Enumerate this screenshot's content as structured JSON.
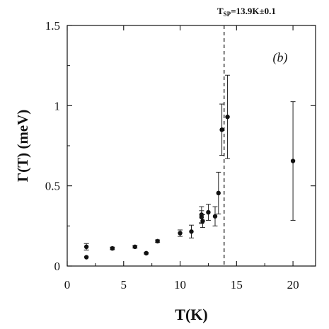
{
  "chart_data": {
    "type": "scatter",
    "title": "",
    "xlabel": "T(K)",
    "ylabel": "Γ(T)  (meV)",
    "panel_label": "(b)",
    "xlim": [
      0,
      22
    ],
    "ylim": [
      0,
      1.5
    ],
    "x_ticks": [
      "0",
      "5",
      "10",
      "15",
      "20"
    ],
    "y_ticks": [
      "0",
      "0.5",
      "1",
      "1.5"
    ],
    "x_tick_values": [
      0,
      5,
      10,
      15,
      20
    ],
    "y_tick_values": [
      0,
      0.5,
      1,
      1.5
    ],
    "grid": false,
    "transition": {
      "x": 13.9,
      "label_main": "T",
      "label_sub": "SP",
      "label_rest": "=13.9K±0.1"
    },
    "points": [
      {
        "x": 1.7,
        "y": 0.12,
        "err": 0.02
      },
      {
        "x": 1.7,
        "y": 0.055,
        "err": 0
      },
      {
        "x": 4.0,
        "y": 0.11,
        "err": 0.008
      },
      {
        "x": 6.0,
        "y": 0.12,
        "err": 0.008
      },
      {
        "x": 7.0,
        "y": 0.08,
        "err": 0.005
      },
      {
        "x": 8.0,
        "y": 0.155,
        "err": 0.008
      },
      {
        "x": 10.0,
        "y": 0.205,
        "err": 0.02
      },
      {
        "x": 11.0,
        "y": 0.215,
        "err": 0.04
      },
      {
        "x": 11.9,
        "y": 0.305,
        "err": 0.04
      },
      {
        "x": 11.9,
        "y": 0.32,
        "err": 0.05
      },
      {
        "x": 12.0,
        "y": 0.28,
        "err": 0.04
      },
      {
        "x": 12.5,
        "y": 0.335,
        "err": 0.05
      },
      {
        "x": 13.1,
        "y": 0.31,
        "err": 0.06
      },
      {
        "x": 13.4,
        "y": 0.455,
        "err": 0.13
      },
      {
        "x": 13.7,
        "y": 0.85,
        "err": 0.16
      },
      {
        "x": 14.2,
        "y": 0.93,
        "err": 0.26
      },
      {
        "x": 20.0,
        "y": 0.655,
        "err": 0.37
      }
    ]
  }
}
